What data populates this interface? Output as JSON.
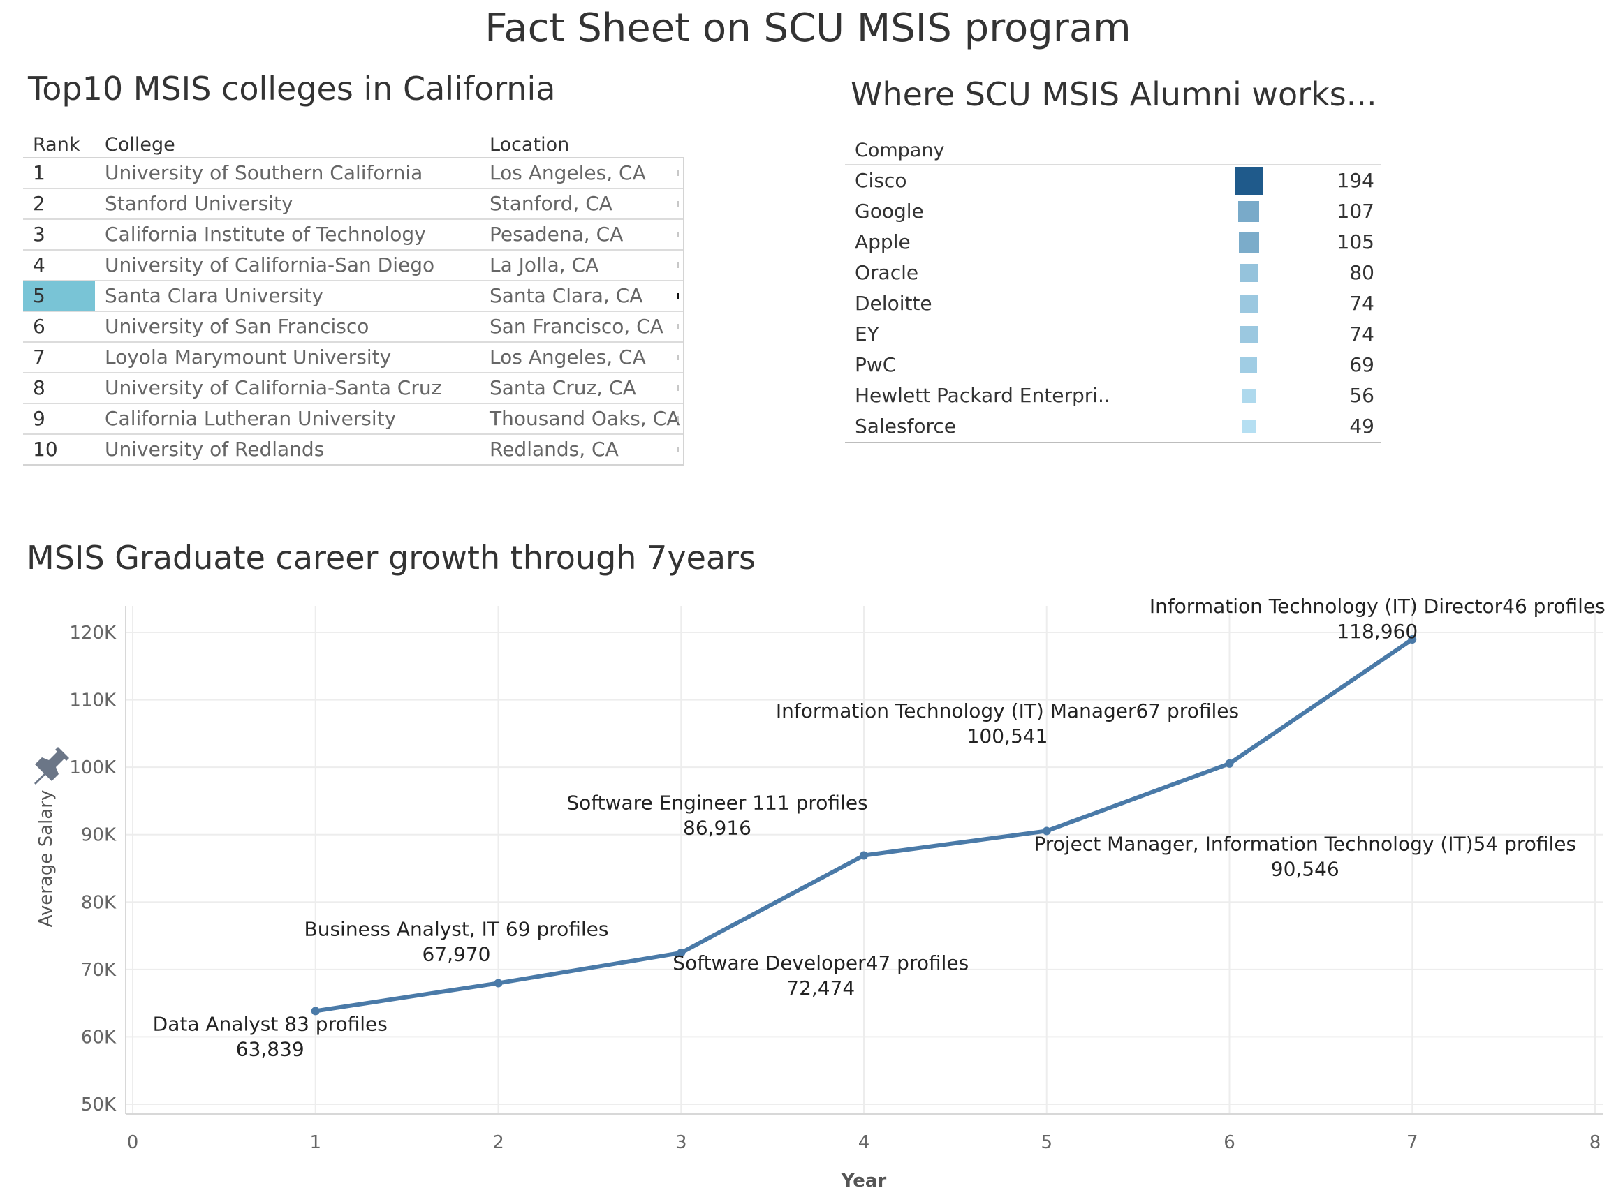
{
  "title": "Fact Sheet on SCU MSIS program",
  "colleges": {
    "title": "Top10 MSIS colleges in California",
    "headers": {
      "rank": "Rank",
      "college": "College",
      "location": "Location"
    },
    "highlight_rank": "5",
    "highlight_color": "#79c4d6",
    "rows": [
      {
        "rank": "1",
        "college": "University of Southern California",
        "location": "Los Angeles, CA"
      },
      {
        "rank": "2",
        "college": "Stanford University",
        "location": "Stanford, CA"
      },
      {
        "rank": "3",
        "college": "California Institute of Technology",
        "location": "Pesadena, CA"
      },
      {
        "rank": "4",
        "college": "University of California-San Diego",
        "location": "La Jolla, CA"
      },
      {
        "rank": "5",
        "college": "Santa Clara University",
        "location": "Santa Clara, CA"
      },
      {
        "rank": "6",
        "college": "University of San Francisco",
        "location": "San Francisco, CA"
      },
      {
        "rank": "7",
        "college": "Loyola Marymount University",
        "location": "Los Angeles, CA"
      },
      {
        "rank": "8",
        "college": "University of California-Santa Cruz",
        "location": "Santa Cruz, CA"
      },
      {
        "rank": "9",
        "college": "California Lutheran University",
        "location": "Thousand Oaks, CA"
      },
      {
        "rank": "10",
        "college": "University of Redlands",
        "location": "Redlands, CA"
      }
    ]
  },
  "alumni": {
    "title": "Where SCU MSIS Alumni works...",
    "header": "Company",
    "color_scale": [
      "#b5dff2",
      "#1f5a8b"
    ],
    "rows": [
      {
        "company": "Cisco",
        "count": 194
      },
      {
        "company": "Google",
        "count": 107
      },
      {
        "company": "Apple",
        "count": 105
      },
      {
        "company": "Oracle",
        "count": 80
      },
      {
        "company": "Deloitte",
        "count": 74
      },
      {
        "company": "EY",
        "count": 74
      },
      {
        "company": "PwC",
        "count": 69
      },
      {
        "company": "Hewlett Packard Enterpri..",
        "count": 56
      },
      {
        "company": "Salesforce",
        "count": 49
      }
    ]
  },
  "chart_data": {
    "type": "line",
    "title": "MSIS Graduate career growth through 7years",
    "xlabel": "Year",
    "ylabel": "Average Salary",
    "xlim": [
      0,
      8
    ],
    "ylim": [
      50000,
      120000
    ],
    "x_ticks": [
      0,
      1,
      2,
      3,
      4,
      5,
      6,
      7,
      8
    ],
    "y_ticks": [
      50000,
      60000,
      70000,
      80000,
      90000,
      100000,
      110000,
      120000
    ],
    "y_tick_labels": [
      "50K",
      "60K",
      "70K",
      "80K",
      "90K",
      "100K",
      "110K",
      "120K"
    ],
    "grid": true,
    "line_color": "#4a7aa8",
    "points": [
      {
        "x": 1,
        "y": 63839,
        "role": "Data Analyst  83 profiles",
        "value_label": "63,839"
      },
      {
        "x": 2,
        "y": 67970,
        "role": "Business Analyst, IT  69 profiles",
        "value_label": "67,970"
      },
      {
        "x": 3,
        "y": 72474,
        "role": "Software Developer47 profiles",
        "value_label": "72,474"
      },
      {
        "x": 4,
        "y": 86916,
        "role": "Software Engineer  111 profiles",
        "value_label": "86,916"
      },
      {
        "x": 5,
        "y": 90546,
        "role": "Project Manager, Information Technology (IT)54 profiles",
        "value_label": "90,546"
      },
      {
        "x": 6,
        "y": 100541,
        "role": "Information Technology (IT) Manager67 profiles",
        "value_label": "100,541"
      },
      {
        "x": 7,
        "y": 118960,
        "role": "Information Technology (IT) Director46 profiles",
        "value_label": "118,960"
      }
    ]
  }
}
